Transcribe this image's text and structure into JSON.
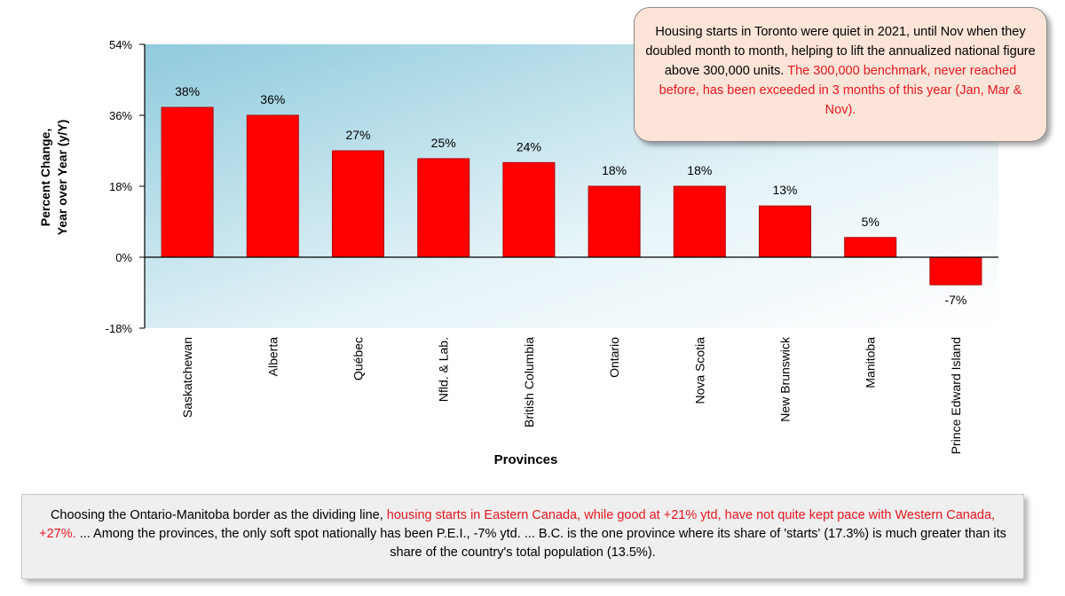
{
  "chart_data": {
    "type": "bar",
    "categories": [
      "Saskatchewan",
      "Alberta",
      "Québec",
      "Nfld. & Lab.",
      "British Columbia",
      "Ontario",
      "Nova Scotia",
      "New Brunswick",
      "Manitoba",
      "Prince Edward Island"
    ],
    "values": [
      38,
      36,
      27,
      25,
      24,
      18,
      18,
      13,
      5,
      -7
    ],
    "data_labels": [
      "38%",
      "36%",
      "27%",
      "25%",
      "24%",
      "18%",
      "18%",
      "13%",
      "5%",
      "-7%"
    ],
    "xlabel": "Provinces",
    "ylabel_lines": [
      "Percent Change,",
      "Year over Year (y/Y)"
    ],
    "ylim": [
      -18,
      54
    ],
    "yticks": [
      54,
      36,
      18,
      0,
      -18
    ],
    "ytick_labels": [
      "54%",
      "36%",
      "18%",
      "0%",
      "-18%"
    ],
    "grid": false,
    "colors": {
      "bar": "#ff0000",
      "bar_edge": "#b00000",
      "bg_top_left": "#8fcadc",
      "bg_bottom_right": "#ffffff"
    }
  },
  "callout_top": {
    "text_black": "Housing starts in Toronto were quiet in 2021, until Nov when they doubled month to month, helping to lift the annualized national figure above 300,000 units.",
    "text_red": "The 300,000 benchmark, never reached before, has been exceeded in 3 months of this year (Jan, Mar & Nov)."
  },
  "callout_bottom": {
    "part1": "Choosing the Ontario-Manitoba border as the dividing line,",
    "part2_red": "housing starts in Eastern Canada, while good at +21% ytd, have not quite kept pace with Western Canada, +27%.",
    "part3": "... Among the provinces, the only soft spot nationally has been P.E.I., -7% ytd. ... B.C. is the one province where its share of 'starts' (17.3%) is much greater than its share of the country's total population (13.5%)."
  },
  "colors": {
    "accent_red": "#e8171f",
    "callout_top_bg": "#fde4d8",
    "callout_bottom_bg": "#efefef"
  }
}
